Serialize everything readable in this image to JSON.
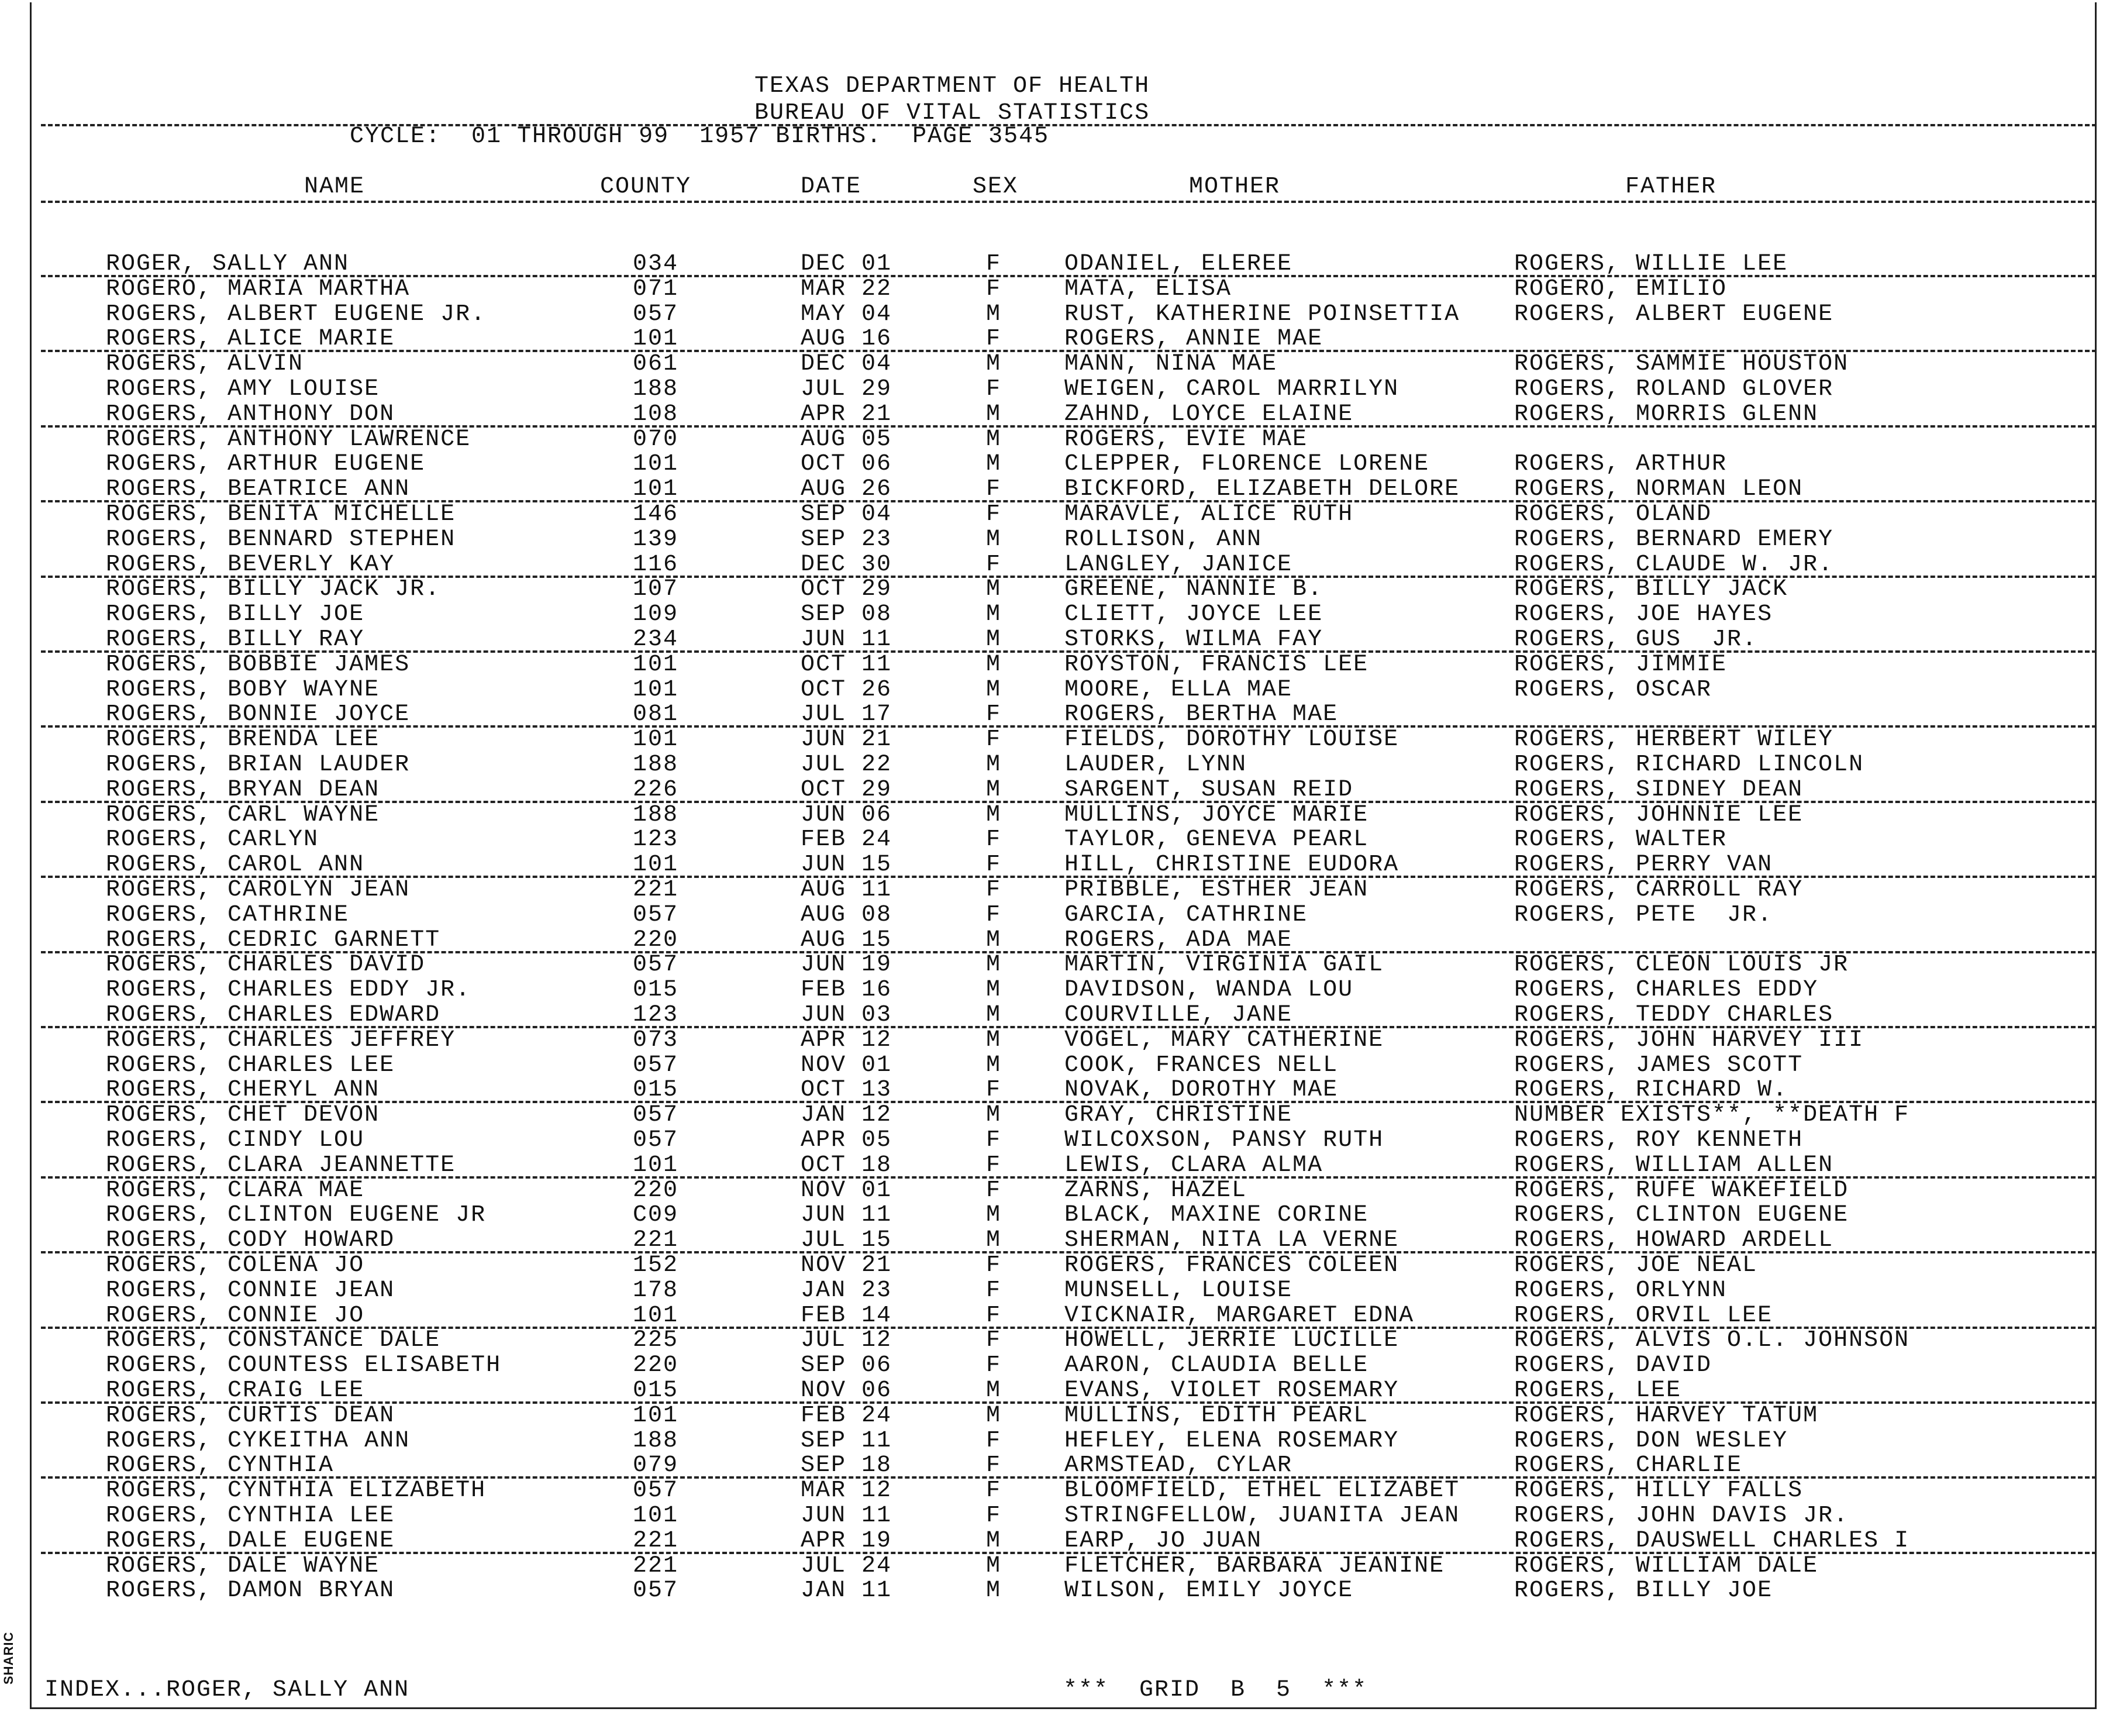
{
  "header": {
    "line1": "TEXAS DEPARTMENT OF HEALTH",
    "line2": "BUREAU OF VITAL STATISTICS",
    "cycle": "CYCLE:  01 THROUGH 99  1957 BIRTHS.  PAGE 3545"
  },
  "columns": [
    "NAME",
    "COUNTY",
    "DATE",
    "SEX",
    "MOTHER",
    "FATHER"
  ],
  "rows": [
    [
      "ROGER, SALLY ANN",
      "034",
      "DEC 01",
      "F",
      "ODANIEL, ELEREE",
      "ROGERS, WILLIE LEE"
    ],
    [
      "ROGERO, MARIA MARTHA",
      "071",
      "MAR 22",
      "F",
      "MATA, ELISA",
      "ROGERO, EMILIO"
    ],
    [
      "ROGERS, ALBERT EUGENE JR.",
      "057",
      "MAY 04",
      "M",
      "RUST, KATHERINE POINSETTIA",
      "ROGERS, ALBERT EUGENE"
    ],
    [
      "ROGERS, ALICE MARIE",
      "101",
      "AUG 16",
      "F",
      "ROGERS, ANNIE MAE",
      ""
    ],
    [
      "ROGERS, ALVIN",
      "061",
      "DEC 04",
      "M",
      "MANN, NINA MAE",
      "ROGERS, SAMMIE HOUSTON"
    ],
    [
      "ROGERS, AMY LOUISE",
      "188",
      "JUL 29",
      "F",
      "WEIGEN, CAROL MARRILYN",
      "ROGERS, ROLAND GLOVER"
    ],
    [
      "ROGERS, ANTHONY DON",
      "108",
      "APR 21",
      "M",
      "ZAHND, LOYCE ELAINE",
      "ROGERS, MORRIS GLENN"
    ],
    [
      "ROGERS, ANTHONY LAWRENCE",
      "070",
      "AUG 05",
      "M",
      "ROGERS, EVIE MAE",
      ""
    ],
    [
      "ROGERS, ARTHUR EUGENE",
      "101",
      "OCT 06",
      "M",
      "CLEPPER, FLORENCE LORENE",
      "ROGERS, ARTHUR"
    ],
    [
      "ROGERS, BEATRICE ANN",
      "101",
      "AUG 26",
      "F",
      "BICKFORD, ELIZABETH DELORE",
      "ROGERS, NORMAN LEON"
    ],
    [
      "ROGERS, BENITA MICHELLE",
      "146",
      "SEP 04",
      "F",
      "MARAVLE, ALICE RUTH",
      "ROGERS, OLAND"
    ],
    [
      "ROGERS, BENNARD STEPHEN",
      "139",
      "SEP 23",
      "M",
      "ROLLISON, ANN",
      "ROGERS, BERNARD EMERY"
    ],
    [
      "ROGERS, BEVERLY KAY",
      "116",
      "DEC 30",
      "F",
      "LANGLEY, JANICE",
      "ROGERS, CLAUDE W. JR."
    ],
    [
      "ROGERS, BILLY JACK JR.",
      "107",
      "OCT 29",
      "M",
      "GREENE, NANNIE B.",
      "ROGERS, BILLY JACK"
    ],
    [
      "ROGERS, BILLY JOE",
      "109",
      "SEP 08",
      "M",
      "CLIETT, JOYCE LEE",
      "ROGERS, JOE HAYES"
    ],
    [
      "ROGERS, BILLY RAY",
      "234",
      "JUN 11",
      "M",
      "STORKS, WILMA FAY",
      "ROGERS, GUS  JR."
    ],
    [
      "ROGERS, BOBBIE JAMES",
      "101",
      "OCT 11",
      "M",
      "ROYSTON, FRANCIS LEE",
      "ROGERS, JIMMIE"
    ],
    [
      "ROGERS, BOBY WAYNE",
      "101",
      "OCT 26",
      "M",
      "MOORE, ELLA MAE",
      "ROGERS, OSCAR"
    ],
    [
      "ROGERS, BONNIE JOYCE",
      "081",
      "JUL 17",
      "F",
      "ROGERS, BERTHA MAE",
      ""
    ],
    [
      "ROGERS, BRENDA LEE",
      "101",
      "JUN 21",
      "F",
      "FIELDS, DOROTHY LOUISE",
      "ROGERS, HERBERT WILEY"
    ],
    [
      "ROGERS, BRIAN LAUDER",
      "188",
      "JUL 22",
      "M",
      "LAUDER, LYNN",
      "ROGERS, RICHARD LINCOLN"
    ],
    [
      "ROGERS, BRYAN DEAN",
      "226",
      "OCT 29",
      "M",
      "SARGENT, SUSAN REID",
      "ROGERS, SIDNEY DEAN"
    ],
    [
      "ROGERS, CARL WAYNE",
      "188",
      "JUN 06",
      "M",
      "MULLINS, JOYCE MARIE",
      "ROGERS, JOHNNIE LEE"
    ],
    [
      "ROGERS, CARLYN",
      "123",
      "FEB 24",
      "F",
      "TAYLOR, GENEVA PEARL",
      "ROGERS, WALTER"
    ],
    [
      "ROGERS, CAROL ANN",
      "101",
      "JUN 15",
      "F",
      "HILL, CHRISTINE EUDORA",
      "ROGERS, PERRY VAN"
    ],
    [
      "ROGERS, CAROLYN JEAN",
      "221",
      "AUG 11",
      "F",
      "PRIBBLE, ESTHER JEAN",
      "ROGERS, CARROLL RAY"
    ],
    [
      "ROGERS, CATHRINE",
      "057",
      "AUG 08",
      "F",
      "GARCIA, CATHRINE",
      "ROGERS, PETE  JR."
    ],
    [
      "ROGERS, CEDRIC GARNETT",
      "220",
      "AUG 15",
      "M",
      "ROGERS, ADA MAE",
      ""
    ],
    [
      "ROGERS, CHARLES DAVID",
      "057",
      "JUN 19",
      "M",
      "MARTIN, VIRGINIA GAIL",
      "ROGERS, CLEON LOUIS JR"
    ],
    [
      "ROGERS, CHARLES EDDY JR.",
      "015",
      "FEB 16",
      "M",
      "DAVIDSON, WANDA LOU",
      "ROGERS, CHARLES EDDY"
    ],
    [
      "ROGERS, CHARLES EDWARD",
      "123",
      "JUN 03",
      "M",
      "COURVILLE, JANE",
      "ROGERS, TEDDY CHARLES"
    ],
    [
      "ROGERS, CHARLES JEFFREY",
      "073",
      "APR 12",
      "M",
      "VOGEL, MARY CATHERINE",
      "ROGERS, JOHN HARVEY III"
    ],
    [
      "ROGERS, CHARLES LEE",
      "057",
      "NOV 01",
      "M",
      "COOK, FRANCES NELL",
      "ROGERS, JAMES SCOTT"
    ],
    [
      "ROGERS, CHERYL ANN",
      "015",
      "OCT 13",
      "F",
      "NOVAK, DOROTHY MAE",
      "ROGERS, RICHARD W."
    ],
    [
      "ROGERS, CHET DEVON",
      "057",
      "JAN 12",
      "M",
      "GRAY, CHRISTINE",
      "NUMBER EXISTS**, **DEATH F"
    ],
    [
      "ROGERS, CINDY LOU",
      "057",
      "APR 05",
      "F",
      "WILCOXSON, PANSY RUTH",
      "ROGERS, ROY KENNETH"
    ],
    [
      "ROGERS, CLARA JEANNETTE",
      "101",
      "OCT 18",
      "F",
      "LEWIS, CLARA ALMA",
      "ROGERS, WILLIAM ALLEN"
    ],
    [
      "ROGERS, CLARA MAE",
      "220",
      "NOV 01",
      "F",
      "ZARNS, HAZEL",
      "ROGERS, RUFE WAKEFIELD"
    ],
    [
      "ROGERS, CLINTON EUGENE JR",
      "C09",
      "JUN 11",
      "M",
      "BLACK, MAXINE CORINE",
      "ROGERS, CLINTON EUGENE"
    ],
    [
      "ROGERS, CODY HOWARD",
      "221",
      "JUL 15",
      "M",
      "SHERMAN, NITA LA VERNE",
      "ROGERS, HOWARD ARDELL"
    ],
    [
      "ROGERS, COLENA JO",
      "152",
      "NOV 21",
      "F",
      "ROGERS, FRANCES COLEEN",
      "ROGERS, JOE NEAL"
    ],
    [
      "ROGERS, CONNIE JEAN",
      "178",
      "JAN 23",
      "F",
      "MUNSELL, LOUISE",
      "ROGERS, ORLYNN"
    ],
    [
      "ROGERS, CONNIE JO",
      "101",
      "FEB 14",
      "F",
      "VICKNAIR, MARGARET EDNA",
      "ROGERS, ORVIL LEE"
    ],
    [
      "ROGERS, CONSTANCE DALE",
      "225",
      "JUL 12",
      "F",
      "HOWELL, JERRIE LUCILLE",
      "ROGERS, ALVIS O.L. JOHNSON"
    ],
    [
      "ROGERS, COUNTESS ELISABETH",
      "220",
      "SEP 06",
      "F",
      "AARON, CLAUDIA BELLE",
      "ROGERS, DAVID"
    ],
    [
      "ROGERS, CRAIG LEE",
      "015",
      "NOV 06",
      "M",
      "EVANS, VIOLET ROSEMARY",
      "ROGERS, LEE"
    ],
    [
      "ROGERS, CURTIS DEAN",
      "101",
      "FEB 24",
      "M",
      "MULLINS, EDITH PEARL",
      "ROGERS, HARVEY TATUM"
    ],
    [
      "ROGERS, CYKEITHA ANN",
      "188",
      "SEP 11",
      "F",
      "HEFLEY, ELENA ROSEMARY",
      "ROGERS, DON WESLEY"
    ],
    [
      "ROGERS, CYNTHIA",
      "079",
      "SEP 18",
      "F",
      "ARMSTEAD, CYLAR",
      "ROGERS, CHARLIE"
    ],
    [
      "ROGERS, CYNTHIA ELIZABETH",
      "057",
      "MAR 12",
      "F",
      "BLOOMFIELD, ETHEL ELIZABET",
      "ROGERS, HILLY FALLS"
    ],
    [
      "ROGERS, CYNTHIA LEE",
      "101",
      "JUN 11",
      "F",
      "STRINGFELLOW, JUANITA JEAN",
      "ROGERS, JOHN DAVIS JR."
    ],
    [
      "ROGERS, DALE EUGENE",
      "221",
      "APR 19",
      "M",
      "EARP, JO JUAN",
      "ROGERS, DAUSWELL CHARLES I"
    ],
    [
      "ROGERS, DALE WAYNE",
      "221",
      "JUL 24",
      "M",
      "FLETCHER, BARBARA JEANINE",
      "ROGERS, WILLIAM DALE"
    ],
    [
      "ROGERS, DAMON BRYAN",
      "057",
      "JAN 11",
      "M",
      "WILSON, EMILY JOYCE",
      "ROGERS, BILLY JOE"
    ]
  ],
  "footer": {
    "index": "INDEX...ROGER, SALLY ANN",
    "grid": "***  GRID  B  5  ***"
  },
  "side_stamp": "SHARIC"
}
